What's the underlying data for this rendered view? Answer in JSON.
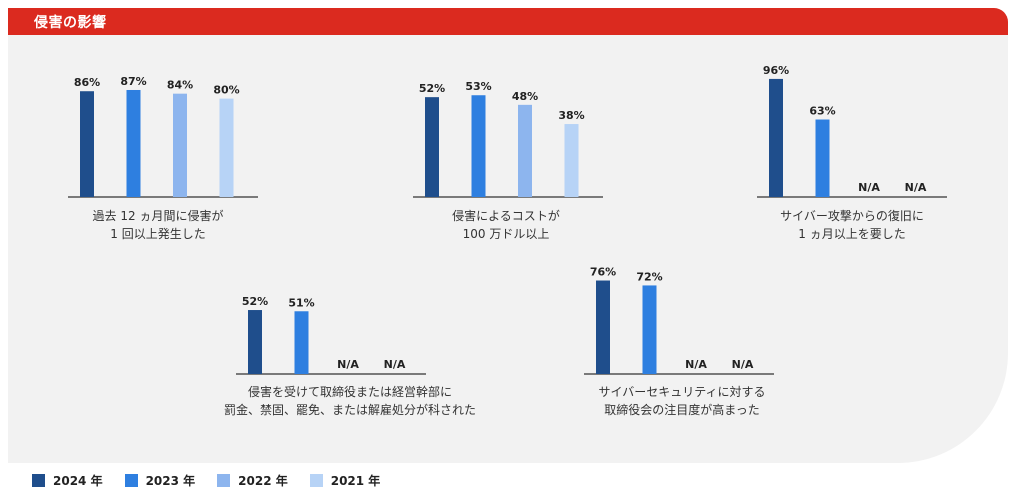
{
  "header": {
    "title": "侵害の影響"
  },
  "legend": [
    {
      "label": "2024 年",
      "color": "#1f4e8c"
    },
    {
      "label": "2023 年",
      "color": "#2e7fe0"
    },
    {
      "label": "2022 年",
      "color": "#8db5ee"
    },
    {
      "label": "2021 年",
      "color": "#b7d3f6"
    }
  ],
  "chart_data": [
    {
      "type": "bar",
      "title": "過去 12 ヵ月間に侵害が\n1 回以上発生した",
      "categories": [
        "2024 年",
        "2023 年",
        "2022 年",
        "2021 年"
      ],
      "values": [
        86,
        87,
        84,
        80
      ],
      "labels": [
        "86%",
        "87%",
        "84%",
        "80%"
      ],
      "unit": "%"
    },
    {
      "type": "bar",
      "title": "侵害によるコストが\n100 万ドル以上",
      "categories": [
        "2024 年",
        "2023 年",
        "2022 年",
        "2021 年"
      ],
      "values": [
        52,
        53,
        48,
        38
      ],
      "labels": [
        "52%",
        "53%",
        "48%",
        "38%"
      ],
      "unit": "%"
    },
    {
      "type": "bar",
      "title": "サイバー攻撃からの復旧に\n1 ヵ月以上を要した",
      "categories": [
        "2024 年",
        "2023 年",
        "2022 年",
        "2021 年"
      ],
      "values": [
        96,
        63,
        null,
        null
      ],
      "labels": [
        "96%",
        "63%",
        "N/A",
        "N/A"
      ],
      "unit": "%"
    },
    {
      "type": "bar",
      "title": "侵害を受けて取締役または経営幹部に\n罰金、禁固、罷免、または解雇処分が科された",
      "categories": [
        "2024 年",
        "2023 年",
        "2022 年",
        "2021 年"
      ],
      "values": [
        52,
        51,
        null,
        null
      ],
      "labels": [
        "52%",
        "51%",
        "N/A",
        "N/A"
      ],
      "unit": "%"
    },
    {
      "type": "bar",
      "title": "サイバーセキュリティに対する\n取締役会の注目度が高まった",
      "categories": [
        "2024 年",
        "2023 年",
        "2022 年",
        "2021 年"
      ],
      "values": [
        76,
        72,
        null,
        null
      ],
      "labels": [
        "76%",
        "72%",
        "N/A",
        "N/A"
      ],
      "unit": "%"
    }
  ]
}
